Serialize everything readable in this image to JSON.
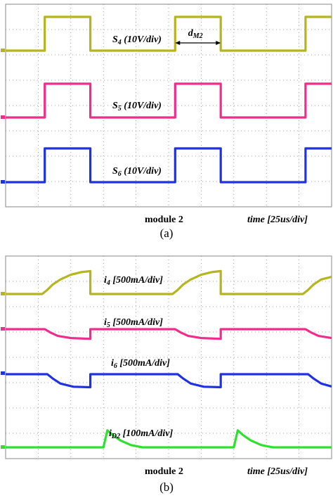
{
  "colors": {
    "ch1": "#b5b51f",
    "ch2": "#ee2d8c",
    "ch3": "#1f31e0",
    "ch4": "#2fe02f",
    "grid": "#8a8a8a",
    "frame": "#888888"
  },
  "chart_data": [
    {
      "type": "line",
      "panel": "a",
      "caption": "(a)",
      "xlabel_left": "module 2",
      "xlabel_right": "time [25us/div]",
      "x_unit": "us",
      "xlim": [
        0,
        250
      ],
      "grid": true,
      "series": [
        {
          "base": "S",
          "sub": "4",
          "scale": " (10V/div)",
          "color_key": "ch1",
          "points": [
            [
              0,
              0
            ],
            [
              30,
              0
            ],
            [
              30,
              10
            ],
            [
              65,
              10
            ],
            [
              65,
              0
            ],
            [
              130,
              0
            ],
            [
              130,
              10
            ],
            [
              165,
              10
            ],
            [
              165,
              0
            ],
            [
              230,
              0
            ],
            [
              230,
              10
            ],
            [
              250,
              10
            ]
          ]
        },
        {
          "base": "S",
          "sub": "5",
          "scale": " (10V/div)",
          "color_key": "ch2",
          "points": [
            [
              0,
              0
            ],
            [
              30,
              0
            ],
            [
              30,
              10
            ],
            [
              65,
              10
            ],
            [
              65,
              0
            ],
            [
              130,
              0
            ],
            [
              130,
              10
            ],
            [
              165,
              10
            ],
            [
              165,
              0
            ],
            [
              230,
              0
            ],
            [
              230,
              10
            ],
            [
              250,
              10
            ]
          ]
        },
        {
          "base": "S",
          "sub": "6",
          "scale": " (10V/div)",
          "color_key": "ch3",
          "points": [
            [
              0,
              0
            ],
            [
              30,
              0
            ],
            [
              30,
              10
            ],
            [
              65,
              10
            ],
            [
              65,
              0
            ],
            [
              130,
              0
            ],
            [
              130,
              10
            ],
            [
              165,
              10
            ],
            [
              165,
              0
            ],
            [
              230,
              0
            ],
            [
              230,
              10
            ],
            [
              250,
              10
            ]
          ]
        }
      ],
      "annotation": {
        "base": "d",
        "sub": "M2",
        "from_x": 130,
        "to_x": 165
      }
    },
    {
      "type": "line",
      "panel": "b",
      "caption": "(b)",
      "xlabel_left": "module 2",
      "xlabel_right": "time [25us/div]",
      "x_unit": "us",
      "xlim": [
        0,
        250
      ],
      "grid": true,
      "series": [
        {
          "base": "i",
          "sub": "4",
          "scale": " [500mA/div]",
          "color_key": "ch1",
          "points": [
            [
              0,
              0
            ],
            [
              28,
              0
            ],
            [
              32,
              80
            ],
            [
              36,
              180
            ],
            [
              42,
              280
            ],
            [
              50,
              370
            ],
            [
              58,
              420
            ],
            [
              65,
              440
            ],
            [
              65,
              0
            ],
            [
              128,
              0
            ],
            [
              132,
              80
            ],
            [
              136,
              180
            ],
            [
              142,
              280
            ],
            [
              150,
              370
            ],
            [
              158,
              420
            ],
            [
              165,
              440
            ],
            [
              165,
              0
            ],
            [
              228,
              0
            ],
            [
              232,
              80
            ],
            [
              236,
              180
            ],
            [
              242,
              280
            ],
            [
              250,
              330
            ]
          ]
        },
        {
          "base": "i",
          "sub": "5",
          "scale": " [500mA/div]",
          "color_key": "ch2",
          "points": [
            [
              0,
              0
            ],
            [
              30,
              0
            ],
            [
              34,
              -60
            ],
            [
              40,
              -130
            ],
            [
              50,
              -170
            ],
            [
              65,
              -185
            ],
            [
              65,
              0
            ],
            [
              130,
              0
            ],
            [
              134,
              -60
            ],
            [
              140,
              -130
            ],
            [
              150,
              -170
            ],
            [
              165,
              -185
            ],
            [
              165,
              0
            ],
            [
              230,
              0
            ],
            [
              234,
              -60
            ],
            [
              240,
              -130
            ],
            [
              250,
              -170
            ]
          ]
        },
        {
          "base": "i",
          "sub": "6",
          "scale": " [500mA/div]",
          "color_key": "ch3",
          "points": [
            [
              0,
              0
            ],
            [
              32,
              0
            ],
            [
              36,
              -80
            ],
            [
              42,
              -180
            ],
            [
              52,
              -240
            ],
            [
              65,
              -250
            ],
            [
              65,
              0
            ],
            [
              132,
              0
            ],
            [
              136,
              -80
            ],
            [
              142,
              -180
            ],
            [
              152,
              -240
            ],
            [
              165,
              -250
            ],
            [
              165,
              0
            ],
            [
              232,
              0
            ],
            [
              236,
              -80
            ],
            [
              242,
              -180
            ],
            [
              250,
              -235
            ]
          ]
        },
        {
          "base": "i",
          "sub": "D2",
          "scale": " [100mA/div]",
          "color_key": "ch4",
          "points": [
            [
              0,
              0
            ],
            [
              75,
              0
            ],
            [
              78,
              110
            ],
            [
              82,
              80
            ],
            [
              88,
              45
            ],
            [
              96,
              15
            ],
            [
              105,
              0
            ],
            [
              175,
              0
            ],
            [
              178,
              110
            ],
            [
              182,
              80
            ],
            [
              188,
              45
            ],
            [
              196,
              15
            ],
            [
              205,
              0
            ],
            [
              250,
              0
            ]
          ]
        }
      ]
    }
  ]
}
